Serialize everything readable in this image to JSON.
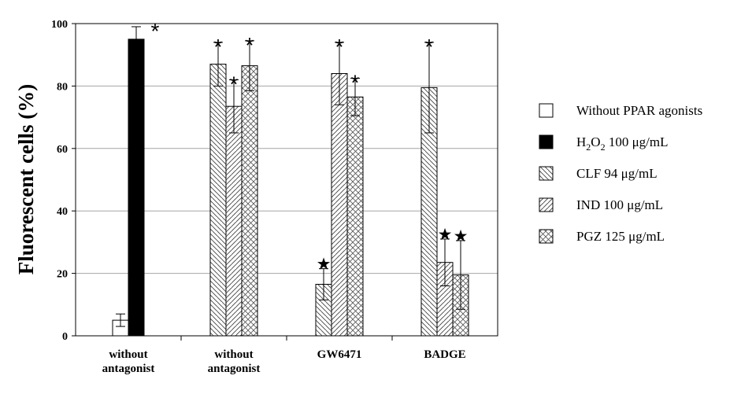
{
  "chart_data": {
    "type": "bar",
    "title": "",
    "xlabel": "",
    "ylabel": "Fluorescent cells (%)",
    "ylim": [
      0,
      100
    ],
    "yticks": [
      "0",
      "20",
      "40",
      "60",
      "80",
      "100"
    ],
    "grid": true,
    "legend_position": "right",
    "categories": [
      [
        "without",
        "antagonist"
      ],
      [
        "without",
        "antagonist"
      ],
      [
        "GW6471"
      ],
      [
        "BADGE"
      ]
    ],
    "series": [
      {
        "name": "Without PPAR agonists",
        "pattern": "white",
        "values": [
          5,
          null,
          null,
          null
        ],
        "errors": [
          2,
          null,
          null,
          null
        ],
        "marks": [
          "",
          "",
          "",
          ""
        ]
      },
      {
        "name": "H2O2 100 μg/mL",
        "pattern": "black",
        "values": [
          95,
          null,
          null,
          null
        ],
        "errors": [
          4,
          null,
          null,
          null
        ],
        "marks": [
          "*",
          "",
          "",
          ""
        ]
      },
      {
        "name": "CLF 94 μg/mL",
        "pattern": "diag-down",
        "values": [
          null,
          87,
          16.5,
          79.5
        ],
        "errors": [
          null,
          7,
          5,
          14.5
        ],
        "marks": [
          "",
          "*",
          "★",
          "*"
        ]
      },
      {
        "name": "IND 100 μg/mL",
        "pattern": "diag-up",
        "values": [
          null,
          73.5,
          84,
          23.5
        ],
        "errors": [
          null,
          8.5,
          10,
          7.5
        ],
        "marks": [
          "",
          "*",
          "*",
          "★"
        ]
      },
      {
        "name": "PGZ 125 μg/mL",
        "pattern": "cross",
        "values": [
          null,
          86.5,
          76.5,
          19.5
        ],
        "errors": [
          null,
          8,
          6,
          11
        ],
        "marks": [
          "",
          "*",
          "*",
          "★"
        ]
      }
    ]
  },
  "legend": {
    "entries": [
      {
        "text": "Without PPAR agonists"
      },
      {
        "pre": "H",
        "sub1": "2",
        "mid": "O",
        "sub2": "2",
        "post": " 100 μg/mL"
      },
      {
        "text": "CLF  94 μg/mL"
      },
      {
        "text": "IND  100 μg/mL"
      },
      {
        "text": "PGZ 125 μg/mL"
      }
    ]
  },
  "colors": {
    "black_bar": "#000000",
    "grid": "#a6a6a6",
    "axis": "#000000"
  }
}
